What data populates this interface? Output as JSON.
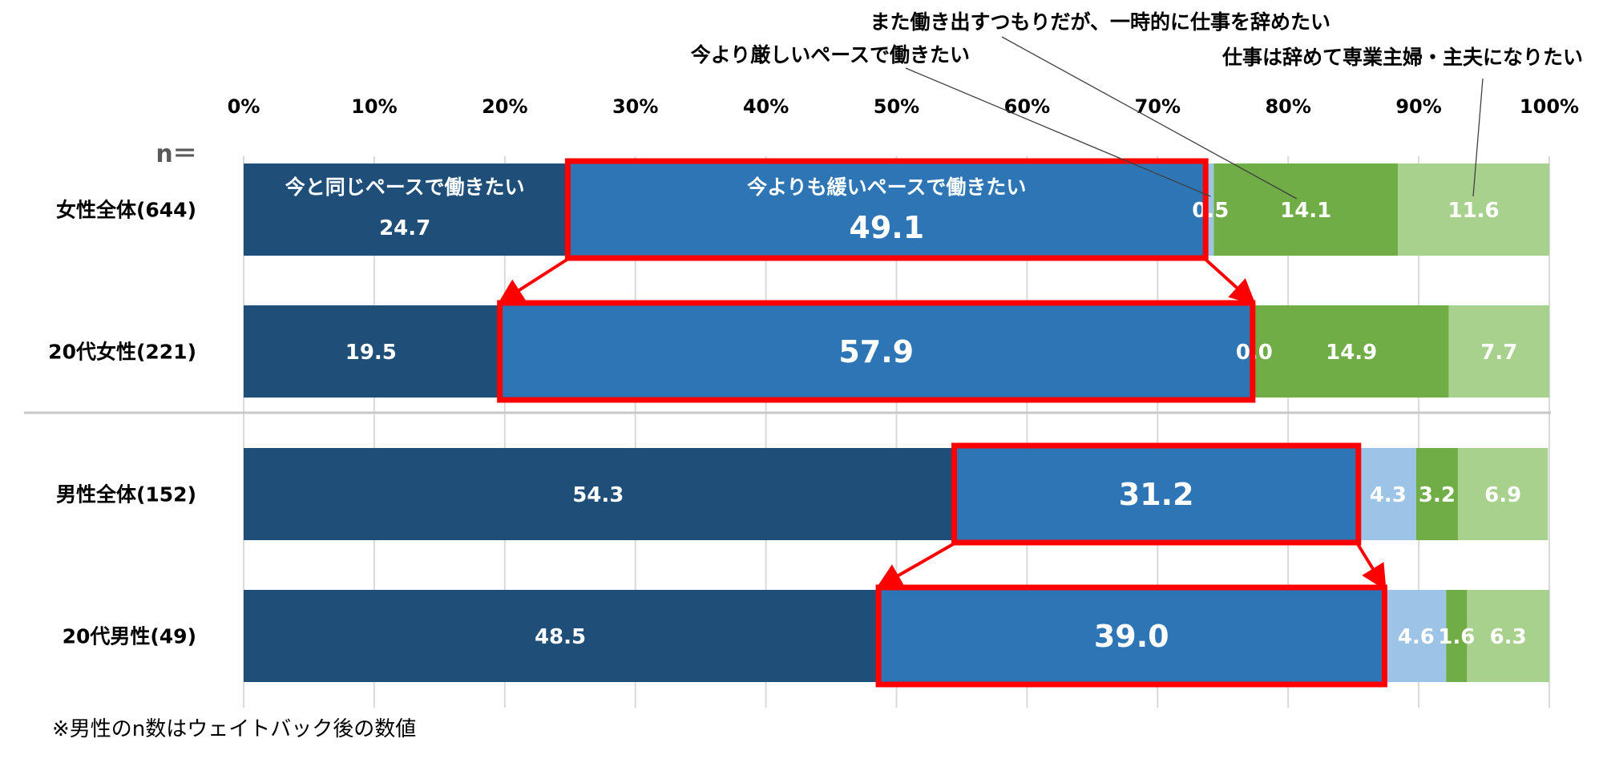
{
  "chart_data": {
    "type": "bar",
    "orientation": "horizontal",
    "stacked": "percent",
    "n_label": "n＝",
    "categories": [
      "女性全体(644)",
      "20代女性(221)",
      "男性全体(152)",
      "20代男性(49)"
    ],
    "xlim": [
      0,
      100
    ],
    "xticks": [
      "0%",
      "10%",
      "20%",
      "30%",
      "40%",
      "50%",
      "60%",
      "70%",
      "80%",
      "90%",
      "100%"
    ],
    "series": [
      {
        "name": "今と同じペースで働きたい",
        "color": "#1f4e79",
        "values": [
          24.7,
          19.5,
          54.3,
          48.5
        ],
        "labels": [
          "24.7",
          "19.5",
          "54.3",
          "48.5"
        ]
      },
      {
        "name": "今よりも緩いペースで働きたい",
        "color": "#2e75b6",
        "values": [
          49.1,
          57.9,
          31.2,
          39.0
        ],
        "labels": [
          "49.1",
          "57.9",
          "31.2",
          "39.0"
        ]
      },
      {
        "name": "今より厳しいペースで働きたい",
        "color": "#9dc3e6",
        "values": [
          0.5,
          0.0,
          4.3,
          4.6
        ],
        "labels": [
          "0.5",
          "0.0",
          "4.3",
          "4.6"
        ]
      },
      {
        "name": "また働き出すつもりだが、一時的に仕事を辞めたい",
        "color": "#70ad47",
        "values": [
          14.1,
          14.9,
          3.2,
          1.6
        ],
        "labels": [
          "14.1",
          "14.9",
          "3.2",
          "1.6"
        ]
      },
      {
        "name": "仕事は辞めて専業主婦・主夫になりたい",
        "color": "#a9d18e",
        "values": [
          11.6,
          7.7,
          6.9,
          6.3
        ],
        "labels": [
          "11.6",
          "7.7",
          "6.9",
          "6.3"
        ]
      }
    ],
    "highlight": {
      "series_index": 1,
      "color": "#ff0000"
    },
    "footnote": "※男性のn数はウェイトバック後の数値"
  }
}
